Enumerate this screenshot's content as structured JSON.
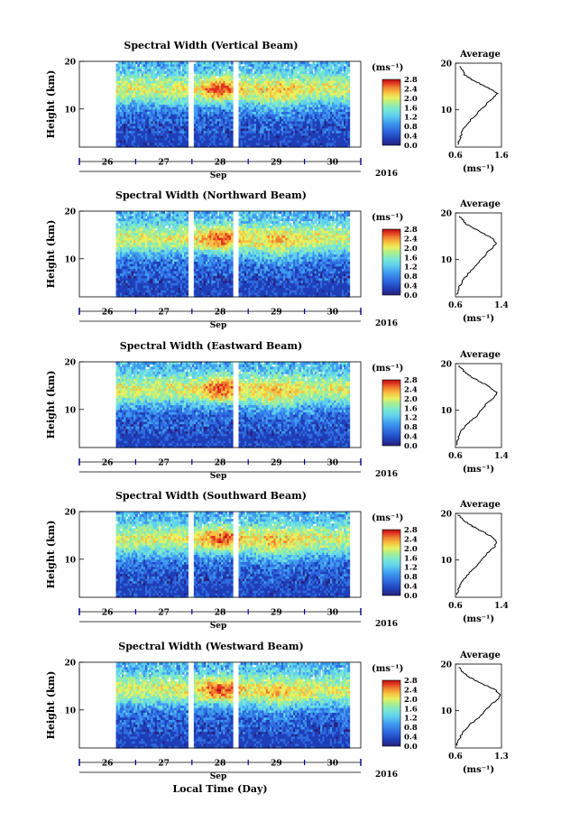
{
  "figure": {
    "x_axis_title": "Local Time (Day)",
    "month_label": "Sep",
    "year_label": "2016"
  },
  "colorbar": {
    "unit": "(ms⁻¹)",
    "colors": [
      "#2a1f7a",
      "#1f3fb8",
      "#2f6be0",
      "#3f9bf0",
      "#5fd0f0",
      "#7ae8d0",
      "#a8ee90",
      "#e8f060",
      "#f8c040",
      "#f08030",
      "#e03020",
      "#b01010"
    ]
  },
  "chart_data": [
    {
      "type": "heatmap",
      "title": "Spectral Width (Vertical Beam)",
      "ylabel": "Height (km)",
      "y_ticks": [
        10,
        20
      ],
      "ylim": [
        2,
        20
      ],
      "x_ticks": [
        "26",
        "27",
        "28",
        "29",
        "30"
      ],
      "xlim": [
        25.5,
        30.5
      ],
      "colorbar_ticks": [
        "0.0",
        "0.4",
        "0.8",
        "1.2",
        "1.6",
        "2.0",
        "2.4",
        "2.8"
      ],
      "data_gaps": [
        [
          25.5,
          26.15
        ],
        [
          27.4,
          27.5
        ],
        [
          28.2,
          28.3
        ]
      ],
      "average_profile": {
        "title": "Average",
        "xlabel": "(ms⁻¹)",
        "x_ticks": [
          "0.6",
          "1.6"
        ],
        "xlim": [
          0.6,
          1.6
        ],
        "y_ticks": [
          10,
          20
        ],
        "ylim": [
          2,
          20
        ],
        "points": [
          [
            0.65,
            2.5
          ],
          [
            0.7,
            4
          ],
          [
            0.75,
            5.5
          ],
          [
            0.85,
            7
          ],
          [
            1.0,
            8.5
          ],
          [
            1.15,
            10
          ],
          [
            1.3,
            11.5
          ],
          [
            1.45,
            12.8
          ],
          [
            1.5,
            13.5
          ],
          [
            1.35,
            14.5
          ],
          [
            1.15,
            15.5
          ],
          [
            0.95,
            16.5
          ],
          [
            0.8,
            17.5
          ],
          [
            0.75,
            18.5
          ],
          [
            0.68,
            19.5
          ]
        ]
      }
    },
    {
      "type": "heatmap",
      "title": "Spectral Width (Northward Beam)",
      "ylabel": "Height (km)",
      "y_ticks": [
        10,
        20
      ],
      "ylim": [
        2,
        20
      ],
      "x_ticks": [
        "26",
        "27",
        "28",
        "29",
        "30"
      ],
      "xlim": [
        25.5,
        30.5
      ],
      "colorbar_ticks": [
        "0.0",
        "0.4",
        "0.8",
        "1.2",
        "1.6",
        "2.0",
        "2.4",
        "2.8"
      ],
      "data_gaps": [
        [
          25.5,
          26.15
        ],
        [
          27.4,
          27.5
        ],
        [
          28.2,
          28.3
        ]
      ],
      "average_profile": {
        "title": "Average",
        "xlabel": "(ms⁻¹)",
        "x_ticks": [
          "0.6",
          "1.4"
        ],
        "xlim": [
          0.6,
          1.4
        ],
        "y_ticks": [
          10,
          20
        ],
        "ylim": [
          2,
          20
        ],
        "points": [
          [
            0.62,
            2.5
          ],
          [
            0.66,
            4
          ],
          [
            0.72,
            5.5
          ],
          [
            0.82,
            7
          ],
          [
            0.95,
            8.5
          ],
          [
            1.05,
            10
          ],
          [
            1.15,
            11.5
          ],
          [
            1.25,
            12.5
          ],
          [
            1.3,
            13.5
          ],
          [
            1.25,
            14.5
          ],
          [
            1.1,
            15.5
          ],
          [
            0.95,
            16.5
          ],
          [
            0.8,
            17.5
          ],
          [
            0.72,
            18.5
          ],
          [
            0.66,
            19.5
          ]
        ]
      }
    },
    {
      "type": "heatmap",
      "title": "Spectral Width (Eastward Beam)",
      "ylabel": "Height (km)",
      "y_ticks": [
        10,
        20
      ],
      "ylim": [
        2,
        20
      ],
      "x_ticks": [
        "26",
        "27",
        "28",
        "29",
        "30"
      ],
      "xlim": [
        25.5,
        30.5
      ],
      "colorbar_ticks": [
        "0.0",
        "0.4",
        "0.8",
        "1.2",
        "1.6",
        "2.0",
        "2.4",
        "2.8"
      ],
      "data_gaps": [
        [
          25.5,
          26.15
        ],
        [
          28.2,
          28.3
        ]
      ],
      "average_profile": {
        "title": "Average",
        "xlabel": "(ms⁻¹)",
        "x_ticks": [
          "0.6",
          "1.4"
        ],
        "xlim": [
          0.6,
          1.4
        ],
        "y_ticks": [
          10,
          20
        ],
        "ylim": [
          2,
          20
        ],
        "points": [
          [
            0.62,
            2.5
          ],
          [
            0.65,
            4
          ],
          [
            0.7,
            5.5
          ],
          [
            0.8,
            7
          ],
          [
            0.95,
            8.5
          ],
          [
            1.05,
            10
          ],
          [
            1.15,
            11.5
          ],
          [
            1.28,
            12.8
          ],
          [
            1.32,
            13.8
          ],
          [
            1.2,
            15
          ],
          [
            1.05,
            16
          ],
          [
            0.9,
            17
          ],
          [
            0.78,
            18
          ],
          [
            0.7,
            19
          ],
          [
            0.64,
            19.8
          ]
        ]
      }
    },
    {
      "type": "heatmap",
      "title": "Spectral Width (Southward Beam)",
      "ylabel": "Height (km)",
      "y_ticks": [
        10,
        20
      ],
      "ylim": [
        2,
        20
      ],
      "x_ticks": [
        "26",
        "27",
        "28",
        "29",
        "30"
      ],
      "xlim": [
        25.5,
        30.5
      ],
      "colorbar_ticks": [
        "0.0",
        "0.4",
        "0.8",
        "1.2",
        "1.6",
        "2.0",
        "2.4",
        "2.8"
      ],
      "data_gaps": [
        [
          25.5,
          26.15
        ],
        [
          27.4,
          27.5
        ],
        [
          28.2,
          28.3
        ]
      ],
      "average_profile": {
        "title": "Average",
        "xlabel": "(ms⁻¹)",
        "x_ticks": [
          "0.6",
          "1.4"
        ],
        "xlim": [
          0.6,
          1.4
        ],
        "y_ticks": [
          10,
          20
        ],
        "ylim": [
          2,
          20
        ],
        "points": [
          [
            0.62,
            2.5
          ],
          [
            0.66,
            4
          ],
          [
            0.72,
            5.5
          ],
          [
            0.82,
            7
          ],
          [
            0.95,
            8.5
          ],
          [
            1.05,
            10
          ],
          [
            1.15,
            11.5
          ],
          [
            1.28,
            12.8
          ],
          [
            1.32,
            14
          ],
          [
            1.2,
            15.2
          ],
          [
            1.05,
            16.2
          ],
          [
            0.9,
            17.2
          ],
          [
            0.78,
            18.2
          ],
          [
            0.7,
            19
          ],
          [
            0.64,
            19.8
          ]
        ]
      }
    },
    {
      "type": "heatmap",
      "title": "Spectral Width (Westward Beam)",
      "ylabel": "Height (km)",
      "y_ticks": [
        10,
        20
      ],
      "ylim": [
        2,
        20
      ],
      "x_ticks": [
        "26",
        "27",
        "28",
        "29",
        "30"
      ],
      "xlim": [
        25.5,
        30.5
      ],
      "colorbar_ticks": [
        "0.0",
        "0.4",
        "0.8",
        "1.2",
        "1.6",
        "2.0",
        "2.4",
        "2.8"
      ],
      "data_gaps": [
        [
          25.5,
          26.15
        ],
        [
          27.4,
          27.5
        ],
        [
          28.2,
          28.3
        ]
      ],
      "average_profile": {
        "title": "Average",
        "xlabel": "(ms⁻¹)",
        "x_ticks": [
          "0.6",
          "1.3"
        ],
        "xlim": [
          0.6,
          1.3
        ],
        "y_ticks": [
          10,
          20
        ],
        "ylim": [
          2,
          20
        ],
        "points": [
          [
            0.62,
            2.5
          ],
          [
            0.66,
            4
          ],
          [
            0.72,
            5.5
          ],
          [
            0.82,
            7
          ],
          [
            0.95,
            8.5
          ],
          [
            1.05,
            10
          ],
          [
            1.15,
            11.5
          ],
          [
            1.25,
            12.5
          ],
          [
            1.28,
            13.5
          ],
          [
            1.2,
            14.5
          ],
          [
            1.05,
            15.5
          ],
          [
            0.9,
            16.5
          ],
          [
            0.78,
            17.5
          ],
          [
            0.7,
            18.5
          ],
          [
            0.65,
            19.5
          ]
        ]
      }
    }
  ]
}
